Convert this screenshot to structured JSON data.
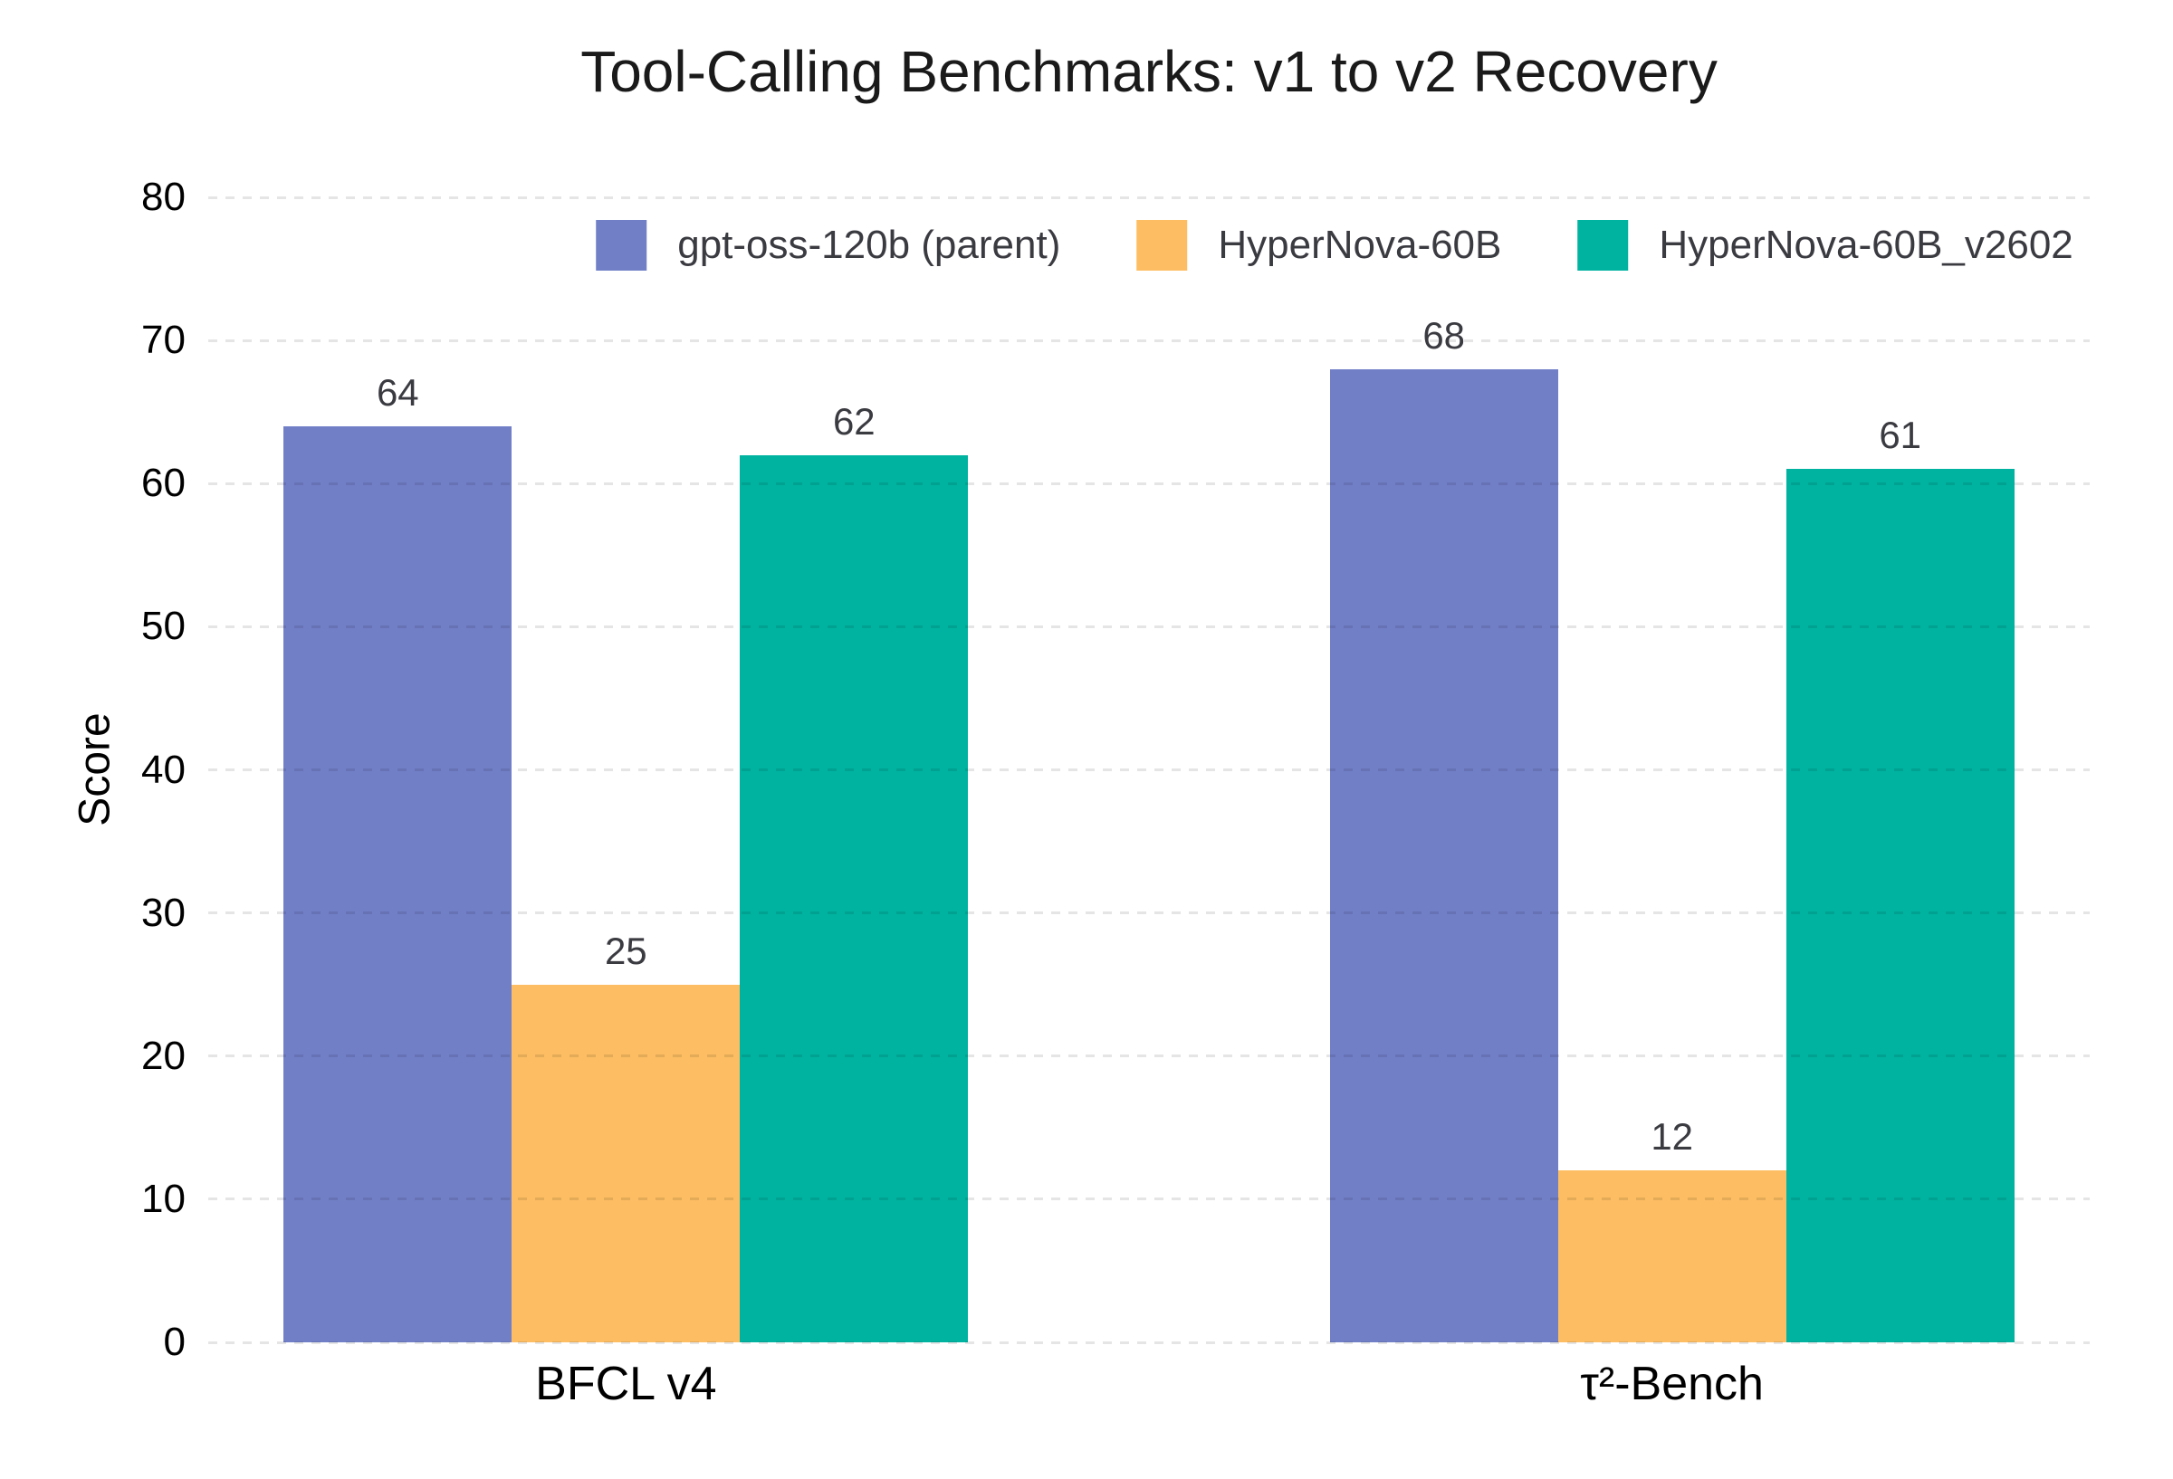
{
  "chart_data": {
    "type": "bar",
    "title": "Tool-Calling Benchmarks: v1 to v2 Recovery",
    "xlabel": "",
    "ylabel": "Score",
    "categories": [
      "BFCL v4",
      "τ²-Bench"
    ],
    "series": [
      {
        "name": "gpt-oss-120b (parent)",
        "color": "#717FC7",
        "values": [
          64,
          68
        ]
      },
      {
        "name": "HyperNova-60B",
        "color": "#FDBD62",
        "values": [
          25,
          12
        ]
      },
      {
        "name": "HyperNova-60B_v2602",
        "color": "#00B3A0",
        "values": [
          62,
          61
        ]
      }
    ],
    "ylim": [
      0,
      80
    ],
    "yticks": [
      0,
      10,
      20,
      30,
      40,
      50,
      60,
      70,
      80
    ],
    "grid": "horizontal-dashed",
    "gridline_color": "#E6E6E6",
    "legend_position": "top-center",
    "value_labels": true,
    "value_label_color": "#3A3A41",
    "background_color": "#FFFFFF"
  }
}
